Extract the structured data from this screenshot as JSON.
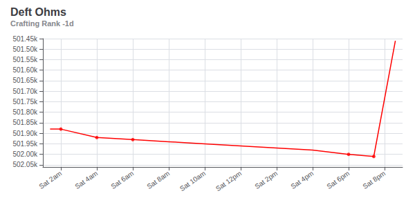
{
  "chart_data": {
    "type": "line",
    "title": "Deft Ohms",
    "subtitle": "Crafting Rank -1d",
    "color": "#ff0000",
    "series": [
      {
        "type": "line",
        "color": "#ff0000",
        "x": [
          -0.3,
          0,
          1,
          2,
          3,
          4,
          5,
          6,
          7,
          8,
          8.7,
          9.3
        ],
        "values": [
          501880,
          501880,
          501920,
          501930,
          501940,
          501950,
          501960,
          501970,
          501980,
          502000,
          502010,
          501460
        ]
      },
      {
        "type": "scatter",
        "color": "#ff0000",
        "x": [
          0,
          1,
          2,
          8,
          8.7
        ],
        "values": [
          501880,
          501920,
          501930,
          502000,
          502010
        ]
      }
    ],
    "xlim": [
      -0.5,
      9.5
    ],
    "xticks": [
      {
        "value": 0,
        "label": "Sat 2am"
      },
      {
        "value": 1,
        "label": "Sat 4am"
      },
      {
        "value": 2,
        "label": "Sat 6am"
      },
      {
        "value": 3,
        "label": "Sat 8am"
      },
      {
        "value": 4,
        "label": "Sat 10am"
      },
      {
        "value": 5,
        "label": "Sat 12pm"
      },
      {
        "value": 6,
        "label": "Sat 2pm"
      },
      {
        "value": 7,
        "label": "Sat 4pm"
      },
      {
        "value": 8,
        "label": "Sat 6pm"
      },
      {
        "value": 9,
        "label": "Sat 8pm"
      }
    ],
    "ylim": [
      502060,
      501450
    ],
    "yticks": [
      {
        "value": 501450,
        "label": "501.45k"
      },
      {
        "value": 501500,
        "label": "501.50k"
      },
      {
        "value": 501550,
        "label": "501.55k"
      },
      {
        "value": 501600,
        "label": "501.60k"
      },
      {
        "value": 501650,
        "label": "501.65k"
      },
      {
        "value": 501700,
        "label": "501.70k"
      },
      {
        "value": 501750,
        "label": "501.75k"
      },
      {
        "value": 501800,
        "label": "501.80k"
      },
      {
        "value": 501850,
        "label": "501.85k"
      },
      {
        "value": 501900,
        "label": "501.90k"
      },
      {
        "value": 501950,
        "label": "501.95k"
      },
      {
        "value": 502000,
        "label": "502.00k"
      },
      {
        "value": 502050,
        "label": "502.05k"
      }
    ],
    "grid": true
  }
}
